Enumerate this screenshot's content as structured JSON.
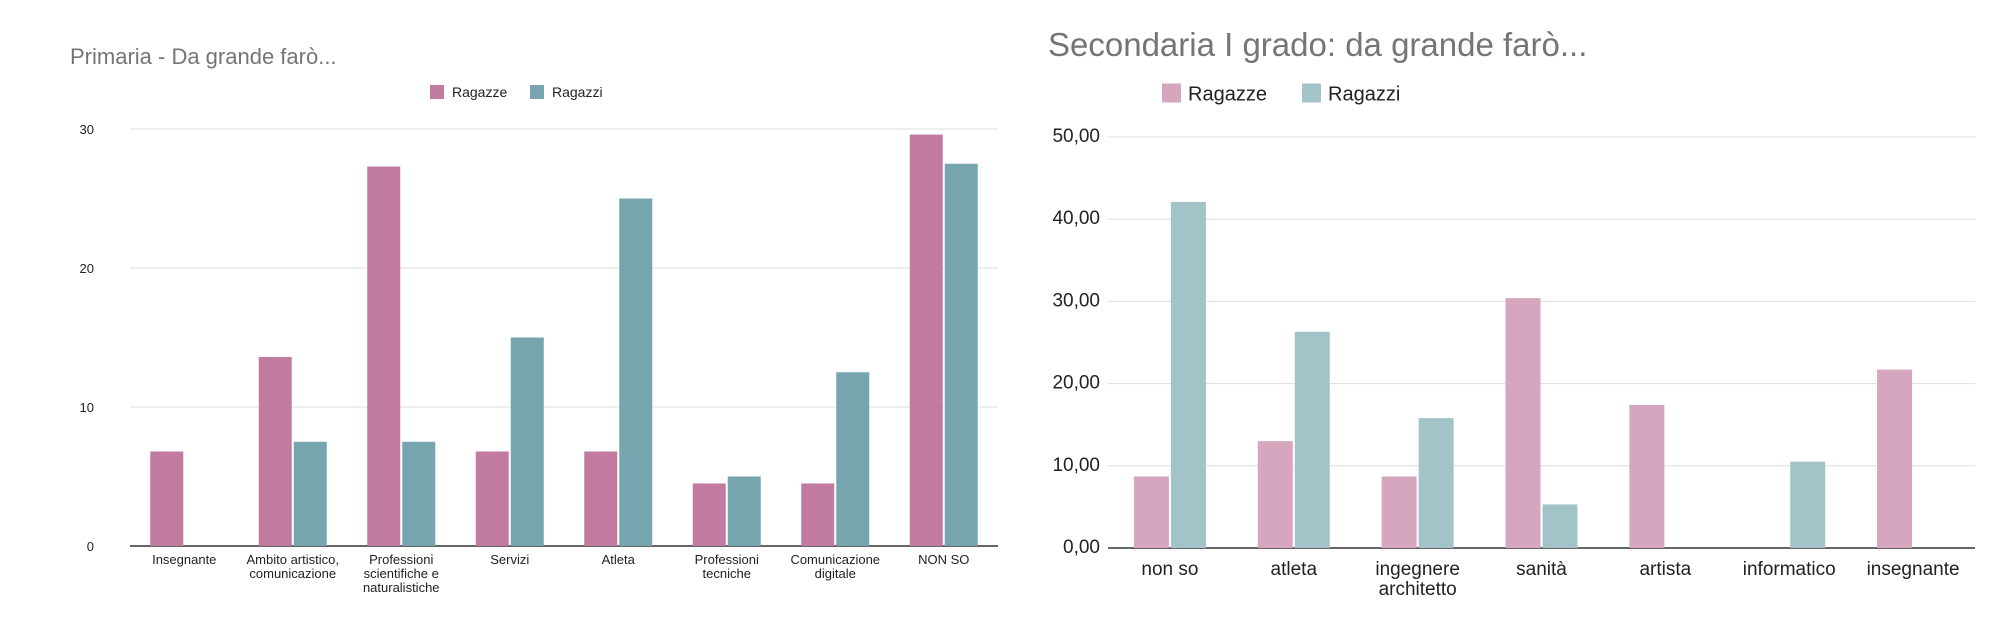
{
  "chart_data": [
    {
      "type": "bar",
      "title": "Primaria - Da grande farò...",
      "categories": [
        "Insegnante",
        "Ambito artistico, comunicazione",
        "Professioni scientifiche e naturalistiche",
        "Servizi",
        "Atleta",
        "Professioni tecniche",
        "Comunicazione digitale",
        "NON SO"
      ],
      "series": [
        {
          "name": "Ragazze",
          "color": "#c27ba0",
          "values": [
            6.8,
            13.6,
            27.3,
            6.8,
            6.8,
            4.5,
            4.5,
            29.6
          ]
        },
        {
          "name": "Ragazzi",
          "color": "#76a5af",
          "values": [
            0,
            7.5,
            7.5,
            15.0,
            25.0,
            5.0,
            12.5,
            27.5
          ]
        }
      ],
      "ylim": [
        0,
        30
      ],
      "yticks": [
        "0",
        "10",
        "20",
        "30"
      ],
      "legend": "top",
      "grid": true
    },
    {
      "type": "bar",
      "title": "Secondaria I grado: da grande farò...",
      "categories": [
        "non so",
        "atleta",
        "ingegnere architetto",
        "sanità",
        "artista",
        "informatico",
        "insegnante"
      ],
      "series": [
        {
          "name": "Ragazze",
          "color": "#d5a6bd",
          "values": [
            8.7,
            13.0,
            8.7,
            30.4,
            17.4,
            0,
            21.7
          ]
        },
        {
          "name": "Ragazzi",
          "color": "#a2c4c9",
          "values": [
            42.1,
            26.3,
            15.8,
            5.3,
            0,
            10.5,
            0
          ]
        }
      ],
      "ylim": [
        0,
        50
      ],
      "yticks": [
        "0,00",
        "10,00",
        "20,00",
        "30,00",
        "40,00",
        "50,00"
      ],
      "legend": "top",
      "grid": true
    }
  ]
}
